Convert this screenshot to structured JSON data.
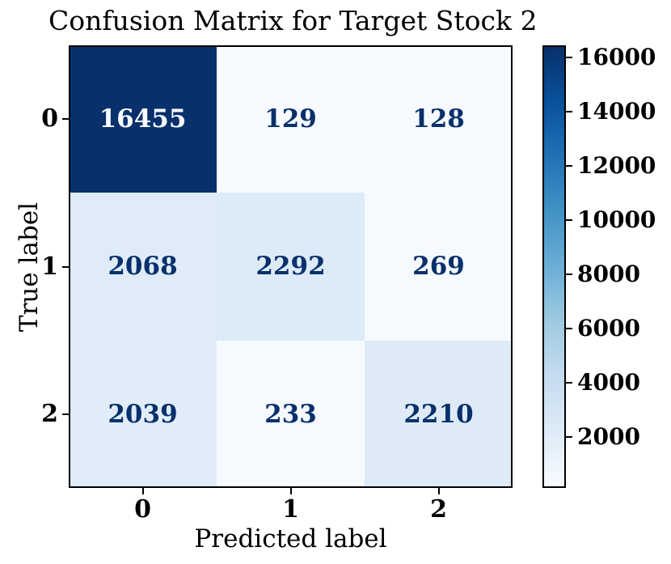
{
  "chart_data": {
    "type": "heatmap",
    "subtype": "confusion_matrix",
    "title": "Confusion Matrix for Target Stock 2",
    "xlabel": "Predicted label",
    "ylabel": "True label",
    "x_tick_labels": [
      "0",
      "1",
      "2"
    ],
    "y_tick_labels": [
      "0",
      "1",
      "2"
    ],
    "matrix": [
      [
        16455,
        129,
        128
      ],
      [
        2068,
        2292,
        269
      ],
      [
        2039,
        233,
        2210
      ]
    ],
    "vmin": 128,
    "vmax": 16455,
    "colormap": "Blues",
    "colormap_stops": [
      {
        "pos": 0.0,
        "color": "#f7fbff"
      },
      {
        "pos": 0.125,
        "color": "#deebf7"
      },
      {
        "pos": 0.25,
        "color": "#c6dbef"
      },
      {
        "pos": 0.375,
        "color": "#9ecae1"
      },
      {
        "pos": 0.5,
        "color": "#6baed6"
      },
      {
        "pos": 0.625,
        "color": "#4292c6"
      },
      {
        "pos": 0.75,
        "color": "#2171b5"
      },
      {
        "pos": 0.875,
        "color": "#08519c"
      },
      {
        "pos": 1.0,
        "color": "#08306b"
      }
    ],
    "cell_text_color_on_light": "#08306b",
    "cell_text_color_on_dark": "#f7fbff",
    "axis_color": "#000000",
    "colorbar": {
      "position": "right",
      "ticks": [
        2000,
        4000,
        6000,
        8000,
        10000,
        12000,
        14000,
        16000
      ]
    },
    "grid": false,
    "legend": false
  }
}
